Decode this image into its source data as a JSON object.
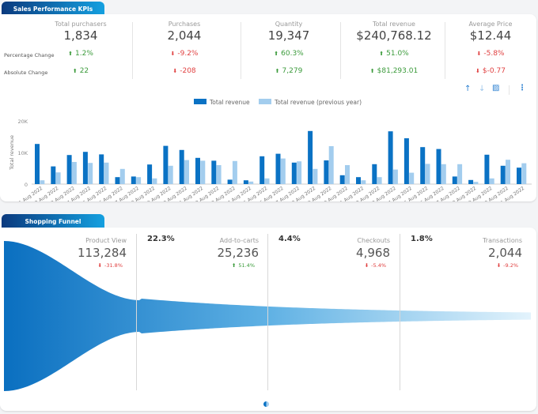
{
  "kpi_panel": {
    "title": "Sales Performance KPIs",
    "row_labels": [
      "Percentage Change",
      "Absolute Change"
    ],
    "metrics": [
      {
        "label": "Total purchasers",
        "value": "1,834",
        "pct": "1.2%",
        "pct_dir": "up",
        "abs": "22",
        "abs_dir": "up"
      },
      {
        "label": "Purchases",
        "value": "2,044",
        "pct": "-9.2%",
        "pct_dir": "down",
        "abs": "-208",
        "abs_dir": "down"
      },
      {
        "label": "Quantity",
        "value": "19,347",
        "pct": "60.3%",
        "pct_dir": "up",
        "abs": "7,279",
        "abs_dir": "up"
      },
      {
        "label": "Total revenue",
        "value": "$240,768.12",
        "pct": "51.0%",
        "pct_dir": "up",
        "abs": "$81,293.01",
        "abs_dir": "up"
      },
      {
        "label": "Average Price",
        "value": "$12.44",
        "pct": "-5.8%",
        "pct_dir": "down",
        "abs": "$-0.77",
        "abs_dir": "down"
      }
    ],
    "toolbar_icons": [
      "arrow-up-icon",
      "arrow-down-icon",
      "chart-settings-icon",
      "more-vertical-icon"
    ]
  },
  "chart_data": {
    "type": "bar",
    "ylabel": "Total revenue",
    "ylim": [
      0,
      20000
    ],
    "yticks": [
      "0",
      "10K",
      "20K"
    ],
    "legend_position": "top",
    "categories": [
      "1 Aug 2022",
      "2 Aug 2022",
      "3 Aug 2022",
      "4 Aug 2022",
      "5 Aug 2022",
      "6 Aug 2022",
      "7 Aug 2022",
      "8 Aug 2022",
      "9 Aug 2022",
      "10 Aug 2022",
      "11 Aug 2022",
      "12 Aug 2022",
      "13 Aug 2022",
      "14 Aug 2022",
      "15 Aug 2022",
      "16 Aug 2022",
      "17 Aug 2022",
      "18 Aug 2022",
      "19 Aug 2022",
      "20 Aug 2022",
      "21 Aug 2022",
      "22 Aug 2022",
      "23 Aug 2022",
      "24 Aug 2022",
      "25 Aug 2022",
      "26 Aug 2022",
      "27 Aug 2022",
      "28 Aug 2022",
      "29 Aug 2022",
      "30 Aug 2022",
      "31 Aug 2022"
    ],
    "series": [
      {
        "name": "Total revenue",
        "color": "#0a72c4",
        "values": [
          12700,
          5600,
          9200,
          10200,
          9400,
          2200,
          2400,
          6200,
          12100,
          10800,
          8300,
          7400,
          1400,
          1200,
          8800,
          9600,
          6800,
          16800,
          7500,
          2800,
          2200,
          6300,
          16700,
          14500,
          11700,
          11100,
          2400,
          1300,
          9300,
          5800,
          5200
        ]
      },
      {
        "name": "Total revenue (previous year)",
        "color": "#a3cdee",
        "values": [
          1200,
          3700,
          7000,
          6700,
          6800,
          4800,
          2200,
          1800,
          5800,
          7600,
          7400,
          6000,
          7300,
          800,
          1800,
          8100,
          7200,
          4800,
          12000,
          6000,
          1200,
          2200,
          4600,
          3600,
          6400,
          6300,
          6300,
          700,
          1800,
          7700,
          6600
        ]
      }
    ]
  },
  "funnel_panel": {
    "title": "Shopping Funnel",
    "stages": [
      {
        "label": "Product View",
        "value": "113,284",
        "change": "-31.8%",
        "dir": "down",
        "conversion": ""
      },
      {
        "label": "Add-to-carts",
        "value": "25,236",
        "change": "51.4%",
        "dir": "up",
        "conversion": "22.3%"
      },
      {
        "label": "Checkouts",
        "value": "4,968",
        "change": "-5.4%",
        "dir": "down",
        "conversion": "4.4%"
      },
      {
        "label": "Transactions",
        "value": "2,044",
        "change": "-9.2%",
        "dir": "down",
        "conversion": "1.8%"
      }
    ]
  },
  "colors": {
    "up": "#3a9a3a",
    "down": "#e04040",
    "accent": "#0a72c4"
  }
}
